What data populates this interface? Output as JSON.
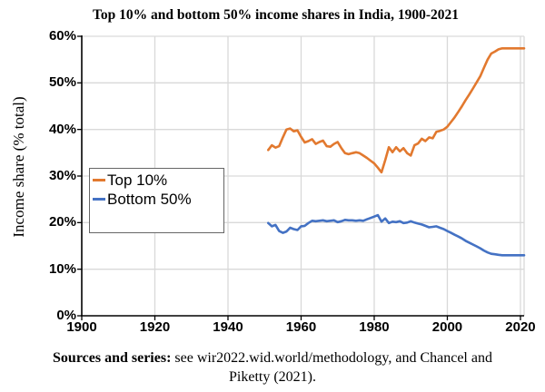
{
  "title": "Top 10% and bottom 50% income shares in India, 1900-2021",
  "y_axis": {
    "label": "Income share (% total)",
    "ticks": [
      {
        "value": 0,
        "label": "0%"
      },
      {
        "value": 10,
        "label": "10%"
      },
      {
        "value": 20,
        "label": "20%"
      },
      {
        "value": 30,
        "label": "30%"
      },
      {
        "value": 40,
        "label": "40%"
      },
      {
        "value": 50,
        "label": "50%"
      },
      {
        "value": 60,
        "label": "60%"
      }
    ]
  },
  "x_axis": {
    "ticks": [
      {
        "value": 1900,
        "label": "1900"
      },
      {
        "value": 1920,
        "label": "1920"
      },
      {
        "value": 1940,
        "label": "1940"
      },
      {
        "value": 1960,
        "label": "1960"
      },
      {
        "value": 1980,
        "label": "1980"
      },
      {
        "value": 2000,
        "label": "2000"
      },
      {
        "value": 2020,
        "label": "2020"
      }
    ]
  },
  "legend": [
    {
      "label": "Top 10%",
      "color": "#E2792F"
    },
    {
      "label": "Bottom 50%",
      "color": "#4472C4"
    }
  ],
  "caption": {
    "bold": "Sources and series:",
    "line1_rest": " see wir2022.wid.world/methodology, and Chancel and",
    "line2": "Piketty (2021)."
  },
  "colors": {
    "grid": "#D9D9D9",
    "axis": "#000000",
    "top10": "#E2792F",
    "bottom50": "#4472C4"
  },
  "chart_data": {
    "type": "line",
    "title": "Top 10% and bottom 50% income shares in India, 1900-2021",
    "xlabel": "",
    "ylabel": "Income share (% total)",
    "xlim": [
      1900,
      2021
    ],
    "ylim": [
      0,
      60
    ],
    "grid": true,
    "legend_position": "center-left",
    "x": [
      1951,
      1952,
      1953,
      1954,
      1955,
      1956,
      1957,
      1958,
      1959,
      1960,
      1961,
      1962,
      1963,
      1964,
      1965,
      1966,
      1967,
      1968,
      1969,
      1970,
      1971,
      1972,
      1973,
      1974,
      1975,
      1976,
      1977,
      1978,
      1979,
      1980,
      1981,
      1982,
      1983,
      1984,
      1985,
      1986,
      1987,
      1988,
      1989,
      1990,
      1991,
      1992,
      1993,
      1994,
      1995,
      1996,
      1997,
      1998,
      1999,
      2000,
      2001,
      2002,
      2003,
      2004,
      2005,
      2006,
      2007,
      2008,
      2009,
      2010,
      2011,
      2012,
      2013,
      2014,
      2015,
      2016,
      2017,
      2018,
      2019,
      2020,
      2021
    ],
    "series": [
      {
        "name": "Top 10%",
        "color": "#E2792F",
        "values": [
          35.6,
          36.6,
          36.1,
          36.4,
          38.3,
          40.0,
          40.2,
          39.6,
          39.8,
          38.4,
          37.2,
          37.5,
          37.9,
          36.9,
          37.3,
          37.6,
          36.4,
          36.3,
          36.9,
          37.3,
          36.0,
          34.9,
          34.7,
          34.9,
          35.1,
          34.9,
          34.4,
          33.9,
          33.3,
          32.7,
          31.8,
          30.8,
          33.4,
          36.2,
          35.1,
          36.2,
          35.3,
          36.0,
          34.9,
          34.4,
          36.6,
          37.0,
          38.0,
          37.5,
          38.3,
          38.1,
          39.5,
          39.7,
          40.0,
          40.6,
          41.6,
          42.6,
          43.8,
          45.0,
          46.3,
          47.5,
          48.8,
          50.1,
          51.4,
          53.2,
          55.0,
          56.3,
          56.7,
          57.2,
          57.4,
          57.4,
          57.4,
          57.4,
          57.4,
          57.4,
          57.4
        ]
      },
      {
        "name": "Bottom 50%",
        "color": "#4472C4",
        "values": [
          19.9,
          19.2,
          19.5,
          18.2,
          17.8,
          18.1,
          18.9,
          18.6,
          18.4,
          19.2,
          19.3,
          19.9,
          20.4,
          20.3,
          20.4,
          20.5,
          20.3,
          20.4,
          20.5,
          20.1,
          20.3,
          20.6,
          20.5,
          20.5,
          20.4,
          20.5,
          20.4,
          20.7,
          21.0,
          21.3,
          21.6,
          20.2,
          20.9,
          19.9,
          20.2,
          20.1,
          20.3,
          19.9,
          20.0,
          20.3,
          20.0,
          19.8,
          19.6,
          19.3,
          19.0,
          19.1,
          19.2,
          18.9,
          18.6,
          18.2,
          17.8,
          17.4,
          17.0,
          16.6,
          16.1,
          15.7,
          15.3,
          14.9,
          14.5,
          14.0,
          13.6,
          13.3,
          13.2,
          13.1,
          13.0,
          13.0,
          13.0,
          13.0,
          13.0,
          13.0,
          13.0
        ]
      }
    ]
  }
}
